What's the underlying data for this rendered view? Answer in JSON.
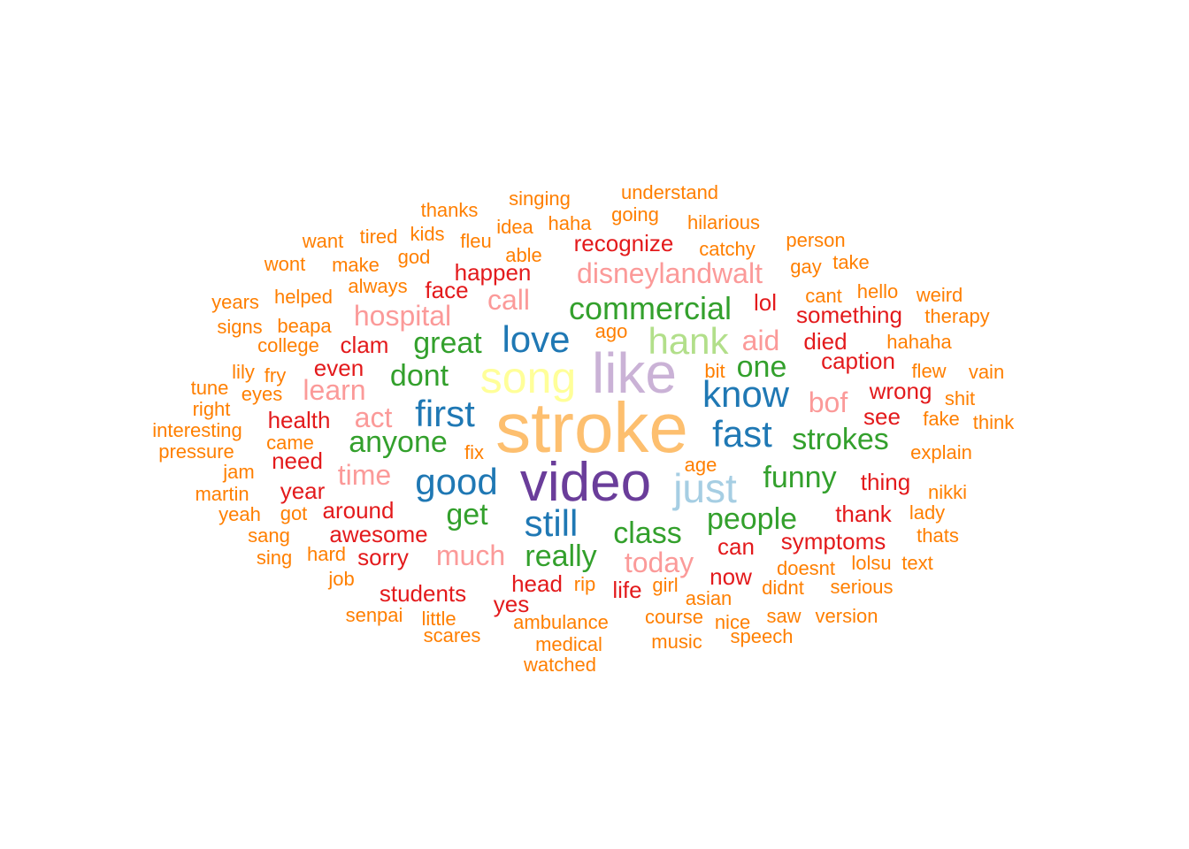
{
  "colors": {
    "orange": "#FF7F00",
    "red": "#E31A1C",
    "pink": "#FB9A99",
    "green": "#33A02C",
    "lightgreen": "#B2DF8A",
    "blue": "#1F78B4",
    "lightblue": "#A6CEE3",
    "purple": "#6A3D9A",
    "lavender": "#CAB2D6",
    "yellow": "#FFFF99",
    "peach": "#FDBF6F"
  },
  "words": [
    {
      "text": "stroke",
      "color": "peach"
    },
    {
      "text": "video",
      "color": "purple"
    },
    {
      "text": "like",
      "color": "lavender"
    },
    {
      "text": "song",
      "color": "yellow"
    },
    {
      "text": "just",
      "color": "lightblue"
    },
    {
      "text": "hank",
      "color": "lightgreen"
    },
    {
      "text": "love",
      "color": "blue"
    },
    {
      "text": "first",
      "color": "blue"
    },
    {
      "text": "good",
      "color": "blue"
    },
    {
      "text": "still",
      "color": "blue"
    },
    {
      "text": "know",
      "color": "blue"
    },
    {
      "text": "fast",
      "color": "blue"
    },
    {
      "text": "commercial",
      "color": "green"
    },
    {
      "text": "great",
      "color": "green"
    },
    {
      "text": "dont",
      "color": "green"
    },
    {
      "text": "anyone",
      "color": "green"
    },
    {
      "text": "get",
      "color": "green"
    },
    {
      "text": "really",
      "color": "green"
    },
    {
      "text": "class",
      "color": "green"
    },
    {
      "text": "people",
      "color": "green"
    },
    {
      "text": "funny",
      "color": "green"
    },
    {
      "text": "strokes",
      "color": "green"
    },
    {
      "text": "one",
      "color": "green"
    },
    {
      "text": "disneylandwalt",
      "color": "pink"
    },
    {
      "text": "call",
      "color": "pink"
    },
    {
      "text": "hospital",
      "color": "pink"
    },
    {
      "text": "learn",
      "color": "pink"
    },
    {
      "text": "act",
      "color": "pink"
    },
    {
      "text": "time",
      "color": "pink"
    },
    {
      "text": "much",
      "color": "pink"
    },
    {
      "text": "today",
      "color": "pink"
    },
    {
      "text": "aid",
      "color": "pink"
    },
    {
      "text": "bof",
      "color": "pink"
    },
    {
      "text": "recognize",
      "color": "red"
    },
    {
      "text": "happen",
      "color": "red"
    },
    {
      "text": "face",
      "color": "red"
    },
    {
      "text": "clam",
      "color": "red"
    },
    {
      "text": "even",
      "color": "red"
    },
    {
      "text": "health",
      "color": "red"
    },
    {
      "text": "need",
      "color": "red"
    },
    {
      "text": "year",
      "color": "red"
    },
    {
      "text": "around",
      "color": "red"
    },
    {
      "text": "awesome",
      "color": "red"
    },
    {
      "text": "sorry",
      "color": "red"
    },
    {
      "text": "students",
      "color": "red"
    },
    {
      "text": "head",
      "color": "red"
    },
    {
      "text": "yes",
      "color": "red"
    },
    {
      "text": "life",
      "color": "red"
    },
    {
      "text": "now",
      "color": "red"
    },
    {
      "text": "can",
      "color": "red"
    },
    {
      "text": "symptoms",
      "color": "red"
    },
    {
      "text": "thank",
      "color": "red"
    },
    {
      "text": "thing",
      "color": "red"
    },
    {
      "text": "see",
      "color": "red"
    },
    {
      "text": "wrong",
      "color": "red"
    },
    {
      "text": "caption",
      "color": "red"
    },
    {
      "text": "died",
      "color": "red"
    },
    {
      "text": "something",
      "color": "red"
    },
    {
      "text": "lol",
      "color": "red"
    },
    {
      "text": "singing",
      "color": "orange"
    },
    {
      "text": "understand",
      "color": "orange"
    },
    {
      "text": "thanks",
      "color": "orange"
    },
    {
      "text": "idea",
      "color": "orange"
    },
    {
      "text": "haha",
      "color": "orange"
    },
    {
      "text": "going",
      "color": "orange"
    },
    {
      "text": "hilarious",
      "color": "orange"
    },
    {
      "text": "want",
      "color": "orange"
    },
    {
      "text": "tired",
      "color": "orange"
    },
    {
      "text": "kids",
      "color": "orange"
    },
    {
      "text": "fleu",
      "color": "orange"
    },
    {
      "text": "able",
      "color": "orange"
    },
    {
      "text": "catchy",
      "color": "orange"
    },
    {
      "text": "person",
      "color": "orange"
    },
    {
      "text": "wont",
      "color": "orange"
    },
    {
      "text": "make",
      "color": "orange"
    },
    {
      "text": "god",
      "color": "orange"
    },
    {
      "text": "gay",
      "color": "orange"
    },
    {
      "text": "take",
      "color": "orange"
    },
    {
      "text": "years",
      "color": "orange"
    },
    {
      "text": "helped",
      "color": "orange"
    },
    {
      "text": "always",
      "color": "orange"
    },
    {
      "text": "cant",
      "color": "orange"
    },
    {
      "text": "hello",
      "color": "orange"
    },
    {
      "text": "weird",
      "color": "orange"
    },
    {
      "text": "signs",
      "color": "orange"
    },
    {
      "text": "beapa",
      "color": "orange"
    },
    {
      "text": "therapy",
      "color": "orange"
    },
    {
      "text": "college",
      "color": "orange"
    },
    {
      "text": "ago",
      "color": "orange"
    },
    {
      "text": "hahaha",
      "color": "orange"
    },
    {
      "text": "lily",
      "color": "orange"
    },
    {
      "text": "fry",
      "color": "orange"
    },
    {
      "text": "bit",
      "color": "orange"
    },
    {
      "text": "flew",
      "color": "orange"
    },
    {
      "text": "vain",
      "color": "orange"
    },
    {
      "text": "tune",
      "color": "orange"
    },
    {
      "text": "eyes",
      "color": "orange"
    },
    {
      "text": "shit",
      "color": "orange"
    },
    {
      "text": "right",
      "color": "orange"
    },
    {
      "text": "fake",
      "color": "orange"
    },
    {
      "text": "think",
      "color": "orange"
    },
    {
      "text": "interesting",
      "color": "orange"
    },
    {
      "text": "came",
      "color": "orange"
    },
    {
      "text": "pressure",
      "color": "orange"
    },
    {
      "text": "fix",
      "color": "orange"
    },
    {
      "text": "explain",
      "color": "orange"
    },
    {
      "text": "jam",
      "color": "orange"
    },
    {
      "text": "age",
      "color": "orange"
    },
    {
      "text": "martin",
      "color": "orange"
    },
    {
      "text": "nikki",
      "color": "orange"
    },
    {
      "text": "yeah",
      "color": "orange"
    },
    {
      "text": "got",
      "color": "orange"
    },
    {
      "text": "lady",
      "color": "orange"
    },
    {
      "text": "sang",
      "color": "orange"
    },
    {
      "text": "thats",
      "color": "orange"
    },
    {
      "text": "sing",
      "color": "orange"
    },
    {
      "text": "hard",
      "color": "orange"
    },
    {
      "text": "doesnt",
      "color": "orange"
    },
    {
      "text": "lolsu",
      "color": "orange"
    },
    {
      "text": "text",
      "color": "orange"
    },
    {
      "text": "job",
      "color": "orange"
    },
    {
      "text": "rip",
      "color": "orange"
    },
    {
      "text": "girl",
      "color": "orange"
    },
    {
      "text": "didnt",
      "color": "orange"
    },
    {
      "text": "serious",
      "color": "orange"
    },
    {
      "text": "asian",
      "color": "orange"
    },
    {
      "text": "senpai",
      "color": "orange"
    },
    {
      "text": "little",
      "color": "orange"
    },
    {
      "text": "ambulance",
      "color": "orange"
    },
    {
      "text": "course",
      "color": "orange"
    },
    {
      "text": "nice",
      "color": "orange"
    },
    {
      "text": "saw",
      "color": "orange"
    },
    {
      "text": "version",
      "color": "orange"
    },
    {
      "text": "scares",
      "color": "orange"
    },
    {
      "text": "medical",
      "color": "orange"
    },
    {
      "text": "music",
      "color": "orange"
    },
    {
      "text": "speech",
      "color": "orange"
    },
    {
      "text": "watched",
      "color": "orange"
    }
  ]
}
